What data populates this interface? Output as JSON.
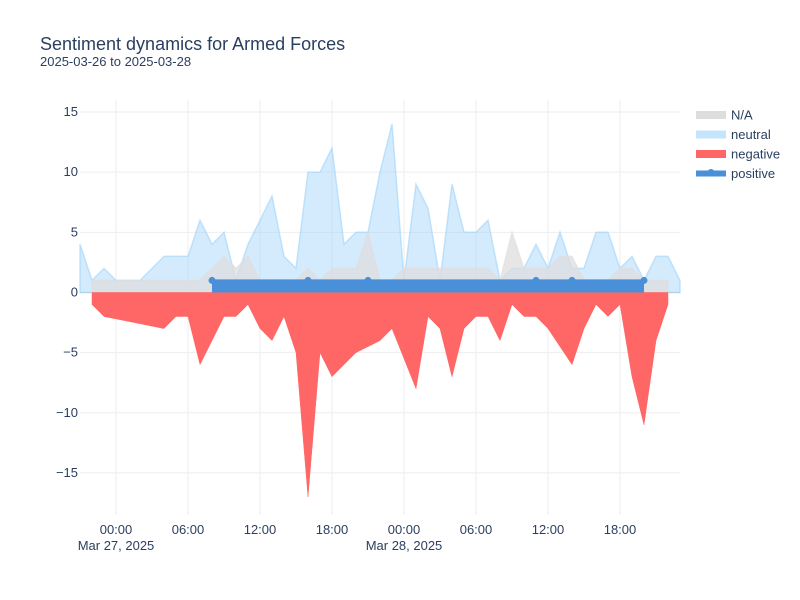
{
  "chart_data": {
    "type": "area",
    "title": "Sentiment dynamics for Armed Forces",
    "subtitle": "2025-03-26 to 2025-03-28",
    "xlabel": "",
    "ylabel": "",
    "x_range": [
      "2025-03-26T21:00",
      "2025-03-28T23:00"
    ],
    "ylim": [
      -18.5,
      16
    ],
    "yticks": [
      15,
      10,
      5,
      0,
      -5,
      -10,
      -15
    ],
    "yticks_labels": [
      "15",
      "10",
      "5",
      "0",
      "−5",
      "−10",
      "−15"
    ],
    "xticks": [
      {
        "t": "2025-03-27T00:00",
        "label": "00:00",
        "sub": "Mar 27, 2025"
      },
      {
        "t": "2025-03-27T06:00",
        "label": "06:00",
        "sub": ""
      },
      {
        "t": "2025-03-27T12:00",
        "label": "12:00",
        "sub": ""
      },
      {
        "t": "2025-03-27T18:00",
        "label": "18:00",
        "sub": ""
      },
      {
        "t": "2025-03-28T00:00",
        "label": "00:00",
        "sub": "Mar 28, 2025"
      },
      {
        "t": "2025-03-28T06:00",
        "label": "06:00",
        "sub": ""
      },
      {
        "t": "2025-03-28T12:00",
        "label": "12:00",
        "sub": ""
      },
      {
        "t": "2025-03-28T18:00",
        "label": "18:00",
        "sub": ""
      }
    ],
    "grid": true,
    "legend": "right",
    "series": [
      {
        "name": "N/A",
        "color": "#dddddd",
        "x": [
          "2025-03-26T22:00",
          "2025-03-27T07:00",
          "2025-03-27T09:00",
          "2025-03-27T10:00",
          "2025-03-27T11:00",
          "2025-03-27T12:00",
          "2025-03-27T13:00",
          "2025-03-27T14:00",
          "2025-03-27T15:00",
          "2025-03-27T16:00",
          "2025-03-27T17:00",
          "2025-03-27T18:00",
          "2025-03-27T19:00",
          "2025-03-27T20:00",
          "2025-03-27T21:00",
          "2025-03-27T22:00",
          "2025-03-27T23:00",
          "2025-03-28T00:00",
          "2025-03-28T01:00",
          "2025-03-28T02:00",
          "2025-03-28T03:00",
          "2025-03-28T04:00",
          "2025-03-28T05:00",
          "2025-03-28T06:00",
          "2025-03-28T07:00",
          "2025-03-28T08:00",
          "2025-03-28T09:00",
          "2025-03-28T10:00",
          "2025-03-28T11:00",
          "2025-03-28T12:00",
          "2025-03-28T13:00",
          "2025-03-28T14:00",
          "2025-03-28T15:00",
          "2025-03-28T16:00",
          "2025-03-28T17:00",
          "2025-03-28T18:00",
          "2025-03-28T19:00",
          "2025-03-28T20:00",
          "2025-03-28T21:00",
          "2025-03-28T22:00"
        ],
        "values": [
          1,
          1,
          3,
          2,
          3,
          1,
          1,
          1,
          1,
          2,
          1,
          2,
          2,
          2,
          5,
          1,
          1,
          2,
          2,
          2,
          2,
          2,
          2,
          2,
          2,
          1,
          5,
          2,
          2,
          2,
          3,
          3,
          1,
          1,
          1,
          2,
          2,
          1,
          1,
          1
        ]
      },
      {
        "name": "neutral",
        "color": "#9fd3fa",
        "x": [
          "2025-03-26T21:00",
          "2025-03-26T22:00",
          "2025-03-26T23:00",
          "2025-03-27T00:00",
          "2025-03-27T01:00",
          "2025-03-27T02:00",
          "2025-03-27T03:00",
          "2025-03-27T04:00",
          "2025-03-27T05:00",
          "2025-03-27T06:00",
          "2025-03-27T07:00",
          "2025-03-27T08:00",
          "2025-03-27T09:00",
          "2025-03-27T10:00",
          "2025-03-27T11:00",
          "2025-03-27T12:00",
          "2025-03-27T13:00",
          "2025-03-27T14:00",
          "2025-03-27T15:00",
          "2025-03-27T16:00",
          "2025-03-27T17:00",
          "2025-03-27T18:00",
          "2025-03-27T19:00",
          "2025-03-27T20:00",
          "2025-03-27T21:00",
          "2025-03-27T22:00",
          "2025-03-27T23:00",
          "2025-03-28T00:00",
          "2025-03-28T01:00",
          "2025-03-28T02:00",
          "2025-03-28T03:00",
          "2025-03-28T04:00",
          "2025-03-28T05:00",
          "2025-03-28T06:00",
          "2025-03-28T07:00",
          "2025-03-28T08:00",
          "2025-03-28T09:00",
          "2025-03-28T10:00",
          "2025-03-28T11:00",
          "2025-03-28T12:00",
          "2025-03-28T13:00",
          "2025-03-28T14:00",
          "2025-03-28T15:00",
          "2025-03-28T16:00",
          "2025-03-28T17:00",
          "2025-03-28T18:00",
          "2025-03-28T19:00",
          "2025-03-28T20:00",
          "2025-03-28T21:00",
          "2025-03-28T22:00",
          "2025-03-28T23:00"
        ],
        "values": [
          4,
          1,
          2,
          1,
          1,
          1,
          2,
          3,
          3,
          3,
          6,
          4,
          5,
          1,
          4,
          6,
          8,
          3,
          2,
          10,
          10,
          12,
          4,
          5,
          5,
          10,
          14,
          1,
          9,
          7,
          1,
          9,
          5,
          5,
          6,
          1,
          2,
          2,
          4,
          2,
          5,
          2,
          2,
          5,
          5,
          2,
          3,
          1,
          3,
          3,
          1
        ]
      },
      {
        "name": "negative",
        "color": "#ff6666",
        "x": [
          "2025-03-26T22:00",
          "2025-03-26T23:00",
          "2025-03-27T00:00",
          "2025-03-27T01:00",
          "2025-03-27T02:00",
          "2025-03-27T03:00",
          "2025-03-27T04:00",
          "2025-03-27T05:00",
          "2025-03-27T06:00",
          "2025-03-27T07:00",
          "2025-03-27T08:00",
          "2025-03-27T09:00",
          "2025-03-27T10:00",
          "2025-03-27T11:00",
          "2025-03-27T12:00",
          "2025-03-27T13:00",
          "2025-03-27T14:00",
          "2025-03-27T15:00",
          "2025-03-27T16:00",
          "2025-03-27T17:00",
          "2025-03-27T18:00",
          "2025-03-27T19:00",
          "2025-03-27T20:00",
          "2025-03-27T21:00",
          "2025-03-27T22:00",
          "2025-03-27T23:00",
          "2025-03-28T00:00",
          "2025-03-28T01:00",
          "2025-03-28T02:00",
          "2025-03-28T03:00",
          "2025-03-28T04:00",
          "2025-03-28T05:00",
          "2025-03-28T06:00",
          "2025-03-28T07:00",
          "2025-03-28T08:00",
          "2025-03-28T09:00",
          "2025-03-28T10:00",
          "2025-03-28T11:00",
          "2025-03-28T12:00",
          "2025-03-28T13:00",
          "2025-03-28T14:00",
          "2025-03-28T15:00",
          "2025-03-28T16:00",
          "2025-03-28T17:00",
          "2025-03-28T18:00",
          "2025-03-28T19:00",
          "2025-03-28T20:00",
          "2025-03-28T21:00",
          "2025-03-28T22:00"
        ],
        "values": [
          -1,
          -2,
          -2.2,
          -2.4,
          -2.6,
          -2.8,
          -3,
          -2,
          -2,
          -6,
          -4,
          -2,
          -2,
          -1,
          -3,
          -4,
          -2,
          -5,
          -17,
          -5,
          -7,
          -6,
          -5,
          -4.5,
          -4,
          -3,
          -5.5,
          -8,
          -2,
          -3,
          -7,
          -3,
          -2,
          -2,
          -4,
          -1,
          -2,
          -2,
          -3,
          -4.5,
          -6,
          -3,
          -1,
          -2,
          -1,
          -7,
          -11,
          -4,
          -1
        ]
      },
      {
        "name": "positive",
        "color": "#4a90d9",
        "x": [
          "2025-03-27T08:00",
          "2025-03-27T16:00",
          "2025-03-27T21:00",
          "2025-03-28T11:00",
          "2025-03-28T14:00",
          "2025-03-28T20:00"
        ],
        "values": [
          1,
          1,
          1,
          1,
          1,
          1
        ]
      }
    ]
  }
}
